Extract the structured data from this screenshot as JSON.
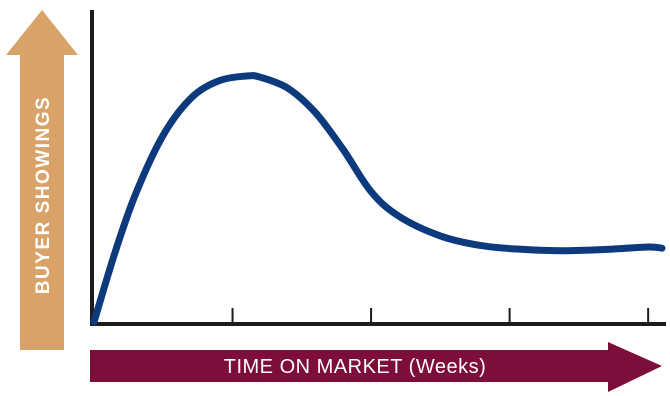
{
  "chart_data": {
    "type": "line",
    "title": "",
    "xlabel": "TIME ON MARKET (Weeks)",
    "ylabel": "BUYER SHOWINGS",
    "xlim": [
      0,
      4.1
    ],
    "ylim": [
      0,
      1
    ],
    "x_ticks": [
      0,
      1,
      2,
      3,
      4
    ],
    "x_tick_labels": [],
    "grid": false,
    "legend": "none",
    "series": [
      {
        "x": [
          0,
          0.15,
          0.3,
          0.5,
          0.7,
          0.9,
          1.1,
          1.2,
          1.4,
          1.6,
          1.8,
          2.0,
          2.2,
          2.5,
          2.8,
          3.1,
          3.4,
          3.7,
          4.0,
          4.1
        ],
        "y": [
          0,
          0.28,
          0.52,
          0.76,
          0.91,
          0.98,
          1.0,
          0.995,
          0.95,
          0.85,
          0.7,
          0.53,
          0.43,
          0.35,
          0.31,
          0.295,
          0.29,
          0.295,
          0.305,
          0.3
        ]
      }
    ],
    "colors": {
      "line": "#0d3a7d",
      "axis": "#1c1c1c",
      "y_arrow": "#d9a268",
      "x_arrow": "#7d0d3a",
      "arrow_text": "#ffffff"
    }
  }
}
